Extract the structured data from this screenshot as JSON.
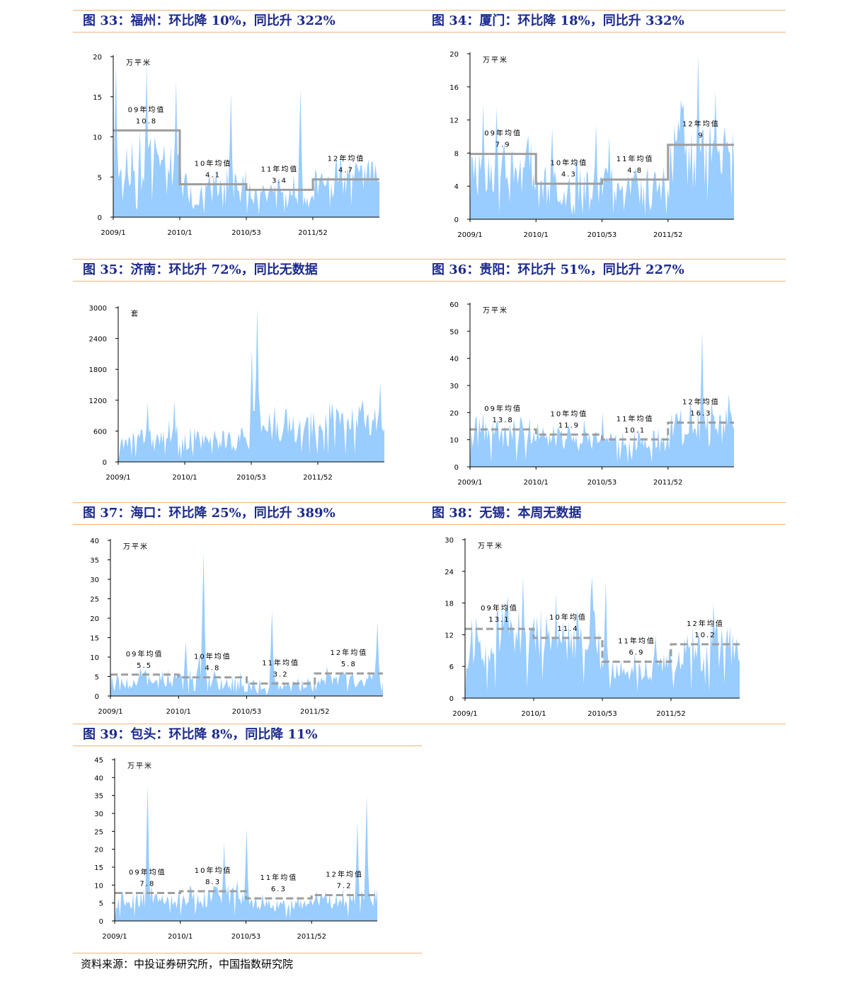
{
  "figures": [
    {
      "title": "图 33：福州：环比降 10%，同比升 322%"
    },
    {
      "title": "图 34：厦门：环比降 18%，同比升 332%"
    },
    {
      "title": "图 35：济南：环比升 72%，同比无数据"
    },
    {
      "title": "图 36：贵阳：环比升 51%，同比升 227%"
    },
    {
      "title": "图 37：海口：环比降 25%，同比升 389%"
    },
    {
      "title": "图 38：无锡：本周无数据"
    },
    {
      "title": "图 39：包头：环比降 8%，同比降 11%"
    }
  ],
  "source": "资料来源：中投证券研究所，中国指数研究院",
  "colors": {
    "area": "#99ccff",
    "avg_line": "#9e9e9e",
    "axis": "#000000",
    "rule": "#f2b37f",
    "title": "#1c2a8c"
  },
  "chart_data": [
    {
      "type": "area",
      "unit": "万平米",
      "ylim": [
        0,
        20
      ],
      "yticks": [
        "0",
        "5",
        "10",
        "15",
        "20"
      ],
      "xticks": [
        "2009/1",
        "2010/1",
        "2010/53",
        "2011/52"
      ],
      "n": 200,
      "seed": 11,
      "base": [
        7,
        3.5,
        2.8,
        4.5
      ],
      "noise": [
        0.55,
        0.7,
        0.65,
        0.5
      ],
      "spikes": [
        [
          2,
          19
        ],
        [
          25,
          19
        ],
        [
          47,
          17
        ],
        [
          88,
          15.5
        ],
        [
          140,
          16
        ],
        [
          170,
          8
        ]
      ],
      "averages": [
        {
          "label": "09年均值",
          "value": 10.8
        },
        {
          "label": "10年均值",
          "value": 4.1
        },
        {
          "label": "11年均值",
          "value": 3.4
        },
        {
          "label": "12年均值",
          "value": 4.7
        }
      ],
      "avg_style": "solid"
    },
    {
      "type": "area",
      "unit": "万平米",
      "ylim": [
        0,
        20
      ],
      "yticks": [
        "0",
        "4",
        "8",
        "12",
        "16",
        "20"
      ],
      "xticks": [
        "2009/1",
        "2010/1",
        "2010/53",
        "2011/52"
      ],
      "n": 200,
      "seed": 23,
      "base": [
        6.5,
        4,
        4.2,
        8
      ],
      "noise": [
        0.55,
        0.6,
        0.6,
        0.55
      ],
      "spikes": [
        [
          10,
          14
        ],
        [
          20,
          13.5
        ],
        [
          62,
          11
        ],
        [
          95,
          11.5
        ],
        [
          105,
          10
        ],
        [
          172,
          20
        ],
        [
          185,
          15.5
        ]
      ],
      "averages": [
        {
          "label": "09年均值",
          "value": 7.9
        },
        {
          "label": "10年均值",
          "value": 4.3
        },
        {
          "label": "11年均值",
          "value": 4.8
        },
        {
          "label": "12年均值",
          "value": 9.0
        }
      ],
      "avg_style": "solid"
    },
    {
      "type": "area",
      "unit": "套",
      "ylim": [
        0,
        3000
      ],
      "yticks": [
        "0",
        "600",
        "1200",
        "1800",
        "2400",
        "3000"
      ],
      "xticks": [
        "2009/1",
        "2010/1",
        "2010/53",
        "2011/52"
      ],
      "n": 200,
      "seed": 37,
      "base": [
        450,
        450,
        600,
        900
      ],
      "noise": [
        0.6,
        0.55,
        0.55,
        0.35
      ],
      "spikes": [
        [
          22,
          1150
        ],
        [
          42,
          1200
        ],
        [
          100,
          2200
        ],
        [
          104,
          3000
        ],
        [
          117,
          1100
        ],
        [
          196,
          1550
        ]
      ],
      "averages": [],
      "avg_style": "none"
    },
    {
      "type": "area",
      "unit": "万平米",
      "ylim": [
        0,
        60
      ],
      "yticks": [
        "0",
        "10",
        "20",
        "30",
        "40",
        "50",
        "60"
      ],
      "xticks": [
        "2009/1",
        "2010/1",
        "2010/53",
        "2011/52"
      ],
      "n": 200,
      "seed": 41,
      "base": [
        12.5,
        11,
        9.5,
        15
      ],
      "noise": [
        0.45,
        0.4,
        0.45,
        0.55
      ],
      "spikes": [
        [
          10,
          20
        ],
        [
          100,
          20
        ],
        [
          175,
          50
        ],
        [
          195,
          27
        ]
      ],
      "averages": [
        {
          "label": "09年均值",
          "value": 13.8
        },
        {
          "label": "10年均值",
          "value": 11.9
        },
        {
          "label": "11年均值",
          "value": 10.1
        },
        {
          "label": "12年均值",
          "value": 16.3
        }
      ],
      "avg_style": "dashed"
    },
    {
      "type": "area",
      "unit": "万平米",
      "ylim": [
        0,
        40
      ],
      "yticks": [
        "0",
        "5",
        "10",
        "15",
        "20",
        "25",
        "30",
        "35",
        "40"
      ],
      "xticks": [
        "2009/1",
        "2010/1",
        "2010/53",
        "2011/52"
      ],
      "n": 200,
      "seed": 53,
      "base": [
        4.5,
        3.8,
        2.8,
        5
      ],
      "noise": [
        0.6,
        0.8,
        0.7,
        0.5
      ],
      "spikes": [
        [
          55,
          14
        ],
        [
          65,
          11
        ],
        [
          68,
          37
        ],
        [
          118,
          22
        ],
        [
          195,
          19
        ]
      ],
      "averages": [
        {
          "label": "09年均值",
          "value": 5.5
        },
        {
          "label": "10年均值",
          "value": 4.8
        },
        {
          "label": "11年均值",
          "value": 3.2
        },
        {
          "label": "12年均值",
          "value": 5.8
        }
      ],
      "avg_style": "dashed"
    },
    {
      "type": "area",
      "unit": "万平米",
      "ylim": [
        0,
        30
      ],
      "yticks": [
        "0",
        "6",
        "12",
        "18",
        "24",
        "30"
      ],
      "xticks": [
        "2009/1",
        "2010/1",
        "2010/53",
        "2011/52"
      ],
      "n": 200,
      "seed": 67,
      "base": [
        11.5,
        11,
        6,
        9.5
      ],
      "noise": [
        0.45,
        0.5,
        0.45,
        0.45
      ],
      "spikes": [
        [
          42,
          23
        ],
        [
          66,
          20
        ],
        [
          92,
          23
        ],
        [
          102,
          22
        ],
        [
          138,
          12
        ],
        [
          180,
          18
        ]
      ],
      "averages": [
        {
          "label": "09年均值",
          "value": 13.1
        },
        {
          "label": "10年均值",
          "value": 11.4
        },
        {
          "label": "11年均值",
          "value": 6.9
        },
        {
          "label": "12年均值",
          "value": 10.2
        }
      ],
      "avg_style": "dashed"
    },
    {
      "type": "area",
      "unit": "万平米",
      "ylim": [
        0,
        45
      ],
      "yticks": [
        "0",
        "5",
        "10",
        "15",
        "20",
        "25",
        "30",
        "35",
        "40",
        "45"
      ],
      "xticks": [
        "2009/1",
        "2010/1",
        "2010/53",
        "2011/52"
      ],
      "n": 200,
      "seed": 79,
      "base": [
        6.5,
        7,
        5,
        6
      ],
      "noise": [
        0.45,
        0.45,
        0.45,
        0.45
      ],
      "spikes": [
        [
          25,
          38
        ],
        [
          83,
          22
        ],
        [
          100,
          26
        ],
        [
          184,
          28
        ],
        [
          191,
          35
        ]
      ],
      "averages": [
        {
          "label": "09年均值",
          "value": 7.8
        },
        {
          "label": "10年均值",
          "value": 8.3
        },
        {
          "label": "11年均值",
          "value": 6.3
        },
        {
          "label": "12年均值",
          "value": 7.2
        }
      ],
      "avg_style": "dashed"
    }
  ]
}
